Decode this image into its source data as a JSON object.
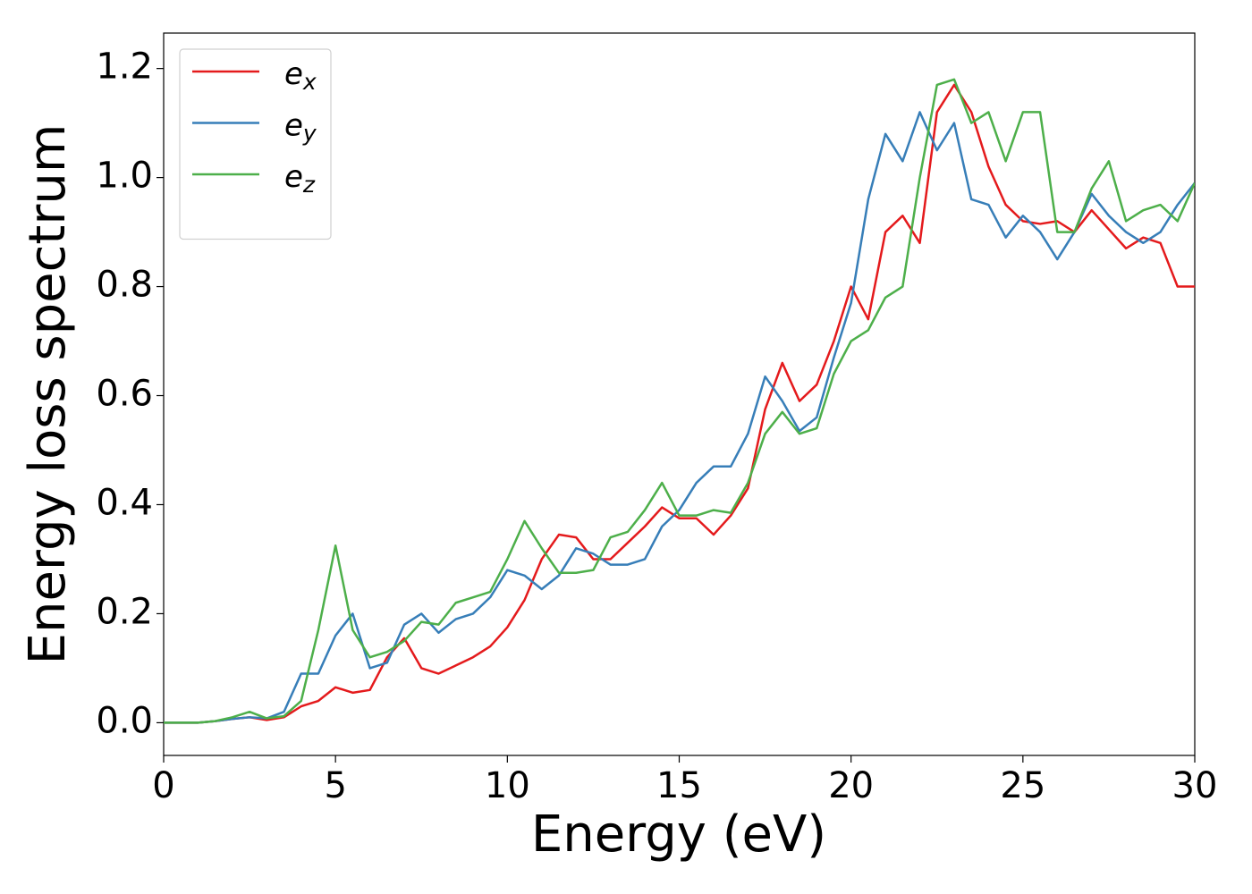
{
  "chart_data": {
    "type": "line",
    "x_label": "Energy (eV)",
    "y_label": "Energy loss spectrum",
    "x": [
      0,
      0.5,
      1,
      1.5,
      2,
      2.5,
      3,
      3.5,
      4,
      4.5,
      5,
      5.5,
      6,
      6.5,
      7,
      7.5,
      8,
      8.5,
      9,
      9.5,
      10,
      10.5,
      11,
      11.5,
      12,
      12.5,
      13,
      13.5,
      14,
      14.5,
      15,
      15.5,
      16,
      16.5,
      17,
      17.5,
      18,
      18.5,
      19,
      19.5,
      20,
      20.5,
      21,
      21.5,
      22,
      22.5,
      23,
      23.5,
      24,
      24.5,
      25,
      25.5,
      26,
      26.5,
      27,
      27.5,
      28,
      28.5,
      29,
      29.5,
      30
    ],
    "series": [
      {
        "name": "e_x",
        "color": "#e41a1c",
        "values": [
          0,
          0,
          0,
          0.003,
          0.007,
          0.01,
          0.005,
          0.01,
          0.03,
          0.04,
          0.065,
          0.055,
          0.06,
          0.12,
          0.155,
          0.1,
          0.09,
          0.105,
          0.12,
          0.14,
          0.175,
          0.225,
          0.3,
          0.345,
          0.34,
          0.3,
          0.3,
          0.33,
          0.36,
          0.395,
          0.375,
          0.375,
          0.345,
          0.38,
          0.43,
          0.575,
          0.66,
          0.59,
          0.62,
          0.7,
          0.8,
          0.74,
          0.9,
          0.93,
          0.88,
          1.12,
          1.17,
          1.12,
          1.02,
          0.95,
          0.92,
          0.915,
          0.92,
          0.9,
          0.94,
          0.905,
          0.87,
          0.89,
          0.88,
          0.8,
          0.8
        ]
      },
      {
        "name": "e_y",
        "color": "#377eb8",
        "values": [
          0,
          0,
          0,
          0.003,
          0.007,
          0.01,
          0.008,
          0.02,
          0.09,
          0.09,
          0.16,
          0.2,
          0.1,
          0.11,
          0.18,
          0.2,
          0.165,
          0.19,
          0.2,
          0.23,
          0.28,
          0.27,
          0.245,
          0.27,
          0.32,
          0.31,
          0.29,
          0.29,
          0.3,
          0.36,
          0.39,
          0.44,
          0.47,
          0.47,
          0.53,
          0.635,
          0.59,
          0.535,
          0.56,
          0.67,
          0.77,
          0.96,
          1.08,
          1.03,
          1.12,
          1.05,
          1.1,
          0.96,
          0.95,
          0.89,
          0.93,
          0.9,
          0.85,
          0.9,
          0.97,
          0.93,
          0.9,
          0.88,
          0.9,
          0.95,
          0.99
        ]
      },
      {
        "name": "e_z",
        "color": "#4daf4a",
        "values": [
          0,
          0,
          0,
          0.003,
          0.01,
          0.02,
          0.008,
          0.012,
          0.04,
          0.17,
          0.325,
          0.17,
          0.12,
          0.13,
          0.15,
          0.185,
          0.18,
          0.22,
          0.23,
          0.24,
          0.3,
          0.37,
          0.32,
          0.275,
          0.275,
          0.28,
          0.34,
          0.35,
          0.39,
          0.44,
          0.38,
          0.38,
          0.39,
          0.385,
          0.44,
          0.53,
          0.57,
          0.53,
          0.54,
          0.64,
          0.7,
          0.72,
          0.78,
          0.8,
          1.0,
          1.17,
          1.18,
          1.1,
          1.12,
          1.03,
          1.12,
          1.12,
          0.9,
          0.9,
          0.98,
          1.03,
          0.92,
          0.94,
          0.95,
          0.92,
          0.99
        ]
      }
    ],
    "xlim": [
      0,
      30
    ],
    "xticks": [
      0,
      5,
      10,
      15,
      20,
      25,
      30
    ],
    "ylim": [
      -0.06,
      1.265
    ],
    "yticks": [
      {
        "value": 0,
        "label": "0.0"
      },
      0.2,
      0.4,
      0.6,
      0.8,
      {
        "value": 1,
        "label": "1.0"
      },
      1.2
    ],
    "grid": false,
    "legend": "upper left"
  }
}
